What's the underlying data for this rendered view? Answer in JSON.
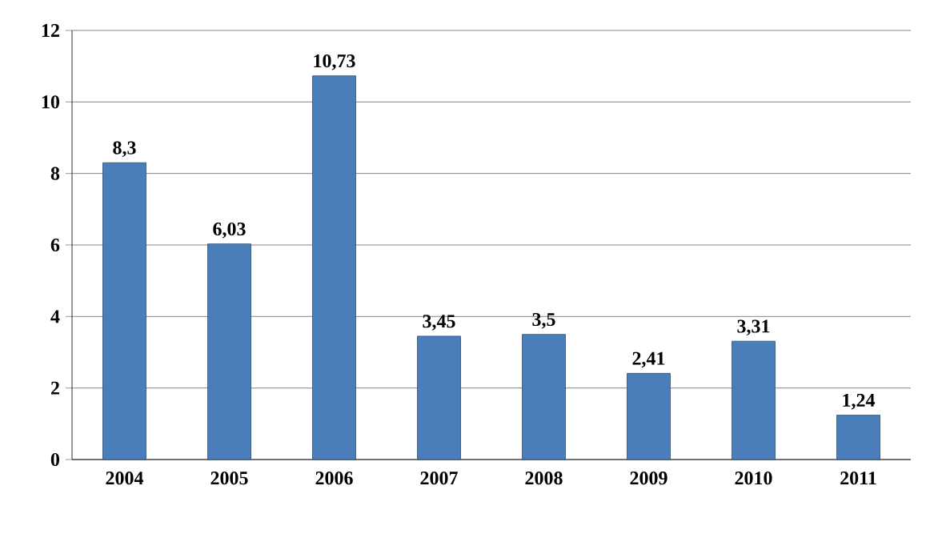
{
  "chart_data": {
    "type": "bar",
    "categories": [
      "2004",
      "2005",
      "2006",
      "2007",
      "2008",
      "2009",
      "2010",
      "2011"
    ],
    "values": [
      8.3,
      6.03,
      10.73,
      3.45,
      3.5,
      2.41,
      3.31,
      1.24
    ],
    "value_labels": [
      "8,3",
      "6,03",
      "10,73",
      "3,45",
      "3,5",
      "2,41",
      "3,31",
      "1,24"
    ],
    "color": "#4a7ebb",
    "ylim": [
      0,
      12
    ],
    "yticks": [
      0,
      2,
      4,
      6,
      8,
      10,
      12
    ],
    "grid": "y"
  }
}
